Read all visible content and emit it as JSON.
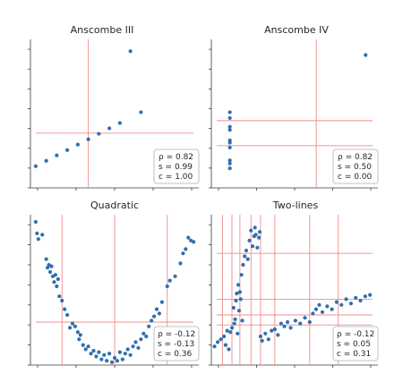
{
  "chart_data": [
    {
      "type": "scatter",
      "title": "Anscombe III",
      "xlim": [
        3.5,
        19.5
      ],
      "ylim": [
        4.0,
        13.5
      ],
      "points": [
        [
          4,
          5.39
        ],
        [
          5,
          5.73
        ],
        [
          6,
          6.08
        ],
        [
          7,
          6.42
        ],
        [
          8,
          6.77
        ],
        [
          9,
          7.11
        ],
        [
          10,
          7.46
        ],
        [
          11,
          7.81
        ],
        [
          12,
          8.15
        ],
        [
          13,
          12.74
        ],
        [
          14,
          8.84
        ]
      ],
      "vlines": [
        9.0
      ],
      "hlines": [
        7.5
      ],
      "stats": {
        "rho": "ρ = 0.82",
        "s": "s = 0.99",
        "c": "c = 1.00"
      }
    },
    {
      "type": "scatter",
      "title": "Anscombe IV",
      "xlim": [
        6.5,
        20.0
      ],
      "ylim": [
        4.0,
        13.5
      ],
      "points": [
        [
          8,
          6.58
        ],
        [
          8,
          5.76
        ],
        [
          8,
          7.71
        ],
        [
          8,
          8.84
        ],
        [
          8,
          8.47
        ],
        [
          8,
          7.04
        ],
        [
          8,
          5.25
        ],
        [
          8,
          5.56
        ],
        [
          8,
          7.91
        ],
        [
          8,
          6.89
        ],
        [
          19,
          12.5
        ]
      ],
      "vlines": [
        15.0
      ],
      "hlines": [
        8.3,
        6.7
      ],
      "stats": {
        "rho": "ρ = 0.82",
        "s": "s = 0.50",
        "c": "c = 0.00"
      }
    },
    {
      "type": "scatter",
      "title": "Quadratic",
      "xlim": [
        -3.2,
        3.2
      ],
      "ylim": [
        0,
        10.5
      ],
      "points": [
        [
          -3.0,
          10.0
        ],
        [
          -2.95,
          9.2
        ],
        [
          -2.9,
          8.8
        ],
        [
          -2.75,
          9.1
        ],
        [
          -2.6,
          7.4
        ],
        [
          -2.55,
          6.8
        ],
        [
          -2.5,
          7.0
        ],
        [
          -2.45,
          6.5
        ],
        [
          -2.4,
          6.9
        ],
        [
          -2.35,
          6.2
        ],
        [
          -2.3,
          5.8
        ],
        [
          -2.25,
          6.3
        ],
        [
          -2.2,
          5.5
        ],
        [
          -2.15,
          6.0
        ],
        [
          -2.1,
          4.8
        ],
        [
          -2.0,
          4.5
        ],
        [
          -1.9,
          3.9
        ],
        [
          -1.8,
          3.5
        ],
        [
          -1.7,
          2.6
        ],
        [
          -1.6,
          2.9
        ],
        [
          -1.5,
          2.7
        ],
        [
          -1.4,
          2.3
        ],
        [
          -1.35,
          1.8
        ],
        [
          -1.3,
          2.1
        ],
        [
          -1.2,
          1.4
        ],
        [
          -1.1,
          1.1
        ],
        [
          -1.0,
          1.3
        ],
        [
          -0.9,
          0.8
        ],
        [
          -0.8,
          1.0
        ],
        [
          -0.7,
          0.6
        ],
        [
          -0.6,
          0.9
        ],
        [
          -0.5,
          0.4
        ],
        [
          -0.4,
          0.7
        ],
        [
          -0.3,
          0.3
        ],
        [
          -0.2,
          0.8
        ],
        [
          -0.1,
          0.2
        ],
        [
          0.0,
          0.5
        ],
        [
          0.1,
          0.3
        ],
        [
          0.2,
          0.9
        ],
        [
          0.3,
          0.4
        ],
        [
          0.4,
          0.8
        ],
        [
          0.5,
          1.1
        ],
        [
          0.6,
          0.7
        ],
        [
          0.7,
          1.3
        ],
        [
          0.8,
          1.6
        ],
        [
          0.9,
          1.2
        ],
        [
          1.0,
          1.8
        ],
        [
          1.1,
          2.2
        ],
        [
          1.2,
          2.0
        ],
        [
          1.3,
          2.7
        ],
        [
          1.4,
          3.1
        ],
        [
          1.5,
          3.4
        ],
        [
          1.6,
          3.9
        ],
        [
          1.7,
          3.6
        ],
        [
          1.8,
          4.4
        ],
        [
          2.0,
          5.5
        ],
        [
          2.1,
          5.9
        ],
        [
          2.3,
          6.2
        ],
        [
          2.5,
          7.1
        ],
        [
          2.6,
          7.8
        ],
        [
          2.7,
          8.1
        ],
        [
          2.8,
          8.9
        ],
        [
          2.9,
          8.7
        ],
        [
          3.0,
          8.6
        ]
      ],
      "vlines": [
        -2.0,
        0.0,
        2.0
      ],
      "hlines": [
        3.0
      ],
      "stats": {
        "rho": "ρ = -0.12",
        "s": "s = -0.13",
        "c": "c = 0.36"
      }
    },
    {
      "type": "scatter",
      "title": "Two-lines",
      "xlim": [
        0,
        10.5
      ],
      "ylim": [
        0,
        10.5
      ],
      "points": [
        [
          0.2,
          1.3
        ],
        [
          0.4,
          1.6
        ],
        [
          0.6,
          1.8
        ],
        [
          0.8,
          2.0
        ],
        [
          0.9,
          1.4
        ],
        [
          1.0,
          2.4
        ],
        [
          1.1,
          1.1
        ],
        [
          1.2,
          2.3
        ],
        [
          1.3,
          2.6
        ],
        [
          1.4,
          4.0
        ],
        [
          1.45,
          2.9
        ],
        [
          1.5,
          3.2
        ],
        [
          1.55,
          4.5
        ],
        [
          1.6,
          5.0
        ],
        [
          1.65,
          2.2
        ],
        [
          1.7,
          5.6
        ],
        [
          1.75,
          3.8
        ],
        [
          1.8,
          5.1
        ],
        [
          1.85,
          4.6
        ],
        [
          1.9,
          6.3
        ],
        [
          1.95,
          3.1
        ],
        [
          2.0,
          7.0
        ],
        [
          2.1,
          7.6
        ],
        [
          2.2,
          8.0
        ],
        [
          2.3,
          7.4
        ],
        [
          2.4,
          8.7
        ],
        [
          2.5,
          9.4
        ],
        [
          2.6,
          8.3
        ],
        [
          2.7,
          9.0
        ],
        [
          2.75,
          9.6
        ],
        [
          2.8,
          9.1
        ],
        [
          2.9,
          8.2
        ],
        [
          3.0,
          8.9
        ],
        [
          3.05,
          9.3
        ],
        [
          3.1,
          2.0
        ],
        [
          3.2,
          1.7
        ],
        [
          3.4,
          2.2
        ],
        [
          3.6,
          1.8
        ],
        [
          3.8,
          2.4
        ],
        [
          4.0,
          2.5
        ],
        [
          4.2,
          2.1
        ],
        [
          4.4,
          2.9
        ],
        [
          4.6,
          2.7
        ],
        [
          4.8,
          3.0
        ],
        [
          5.0,
          2.6
        ],
        [
          5.3,
          3.1
        ],
        [
          5.6,
          2.9
        ],
        [
          5.9,
          3.3
        ],
        [
          6.2,
          3.0
        ],
        [
          6.4,
          3.6
        ],
        [
          6.6,
          3.9
        ],
        [
          6.8,
          4.2
        ],
        [
          7.0,
          3.7
        ],
        [
          7.3,
          4.1
        ],
        [
          7.6,
          3.9
        ],
        [
          7.9,
          4.4
        ],
        [
          8.2,
          4.2
        ],
        [
          8.5,
          4.6
        ],
        [
          8.8,
          4.3
        ],
        [
          9.1,
          4.7
        ],
        [
          9.4,
          4.5
        ],
        [
          9.7,
          4.8
        ],
        [
          10.0,
          4.9
        ]
      ],
      "vlines": [
        0.7,
        1.3,
        1.8,
        2.5,
        3.1,
        4.0,
        6.2,
        8.0
      ],
      "hlines": [
        2.8,
        3.5,
        4.6,
        7.8
      ],
      "stats": {
        "rho": "ρ = -0.12",
        "s": "s = 0.05",
        "c": "c = 0.31"
      }
    }
  ]
}
